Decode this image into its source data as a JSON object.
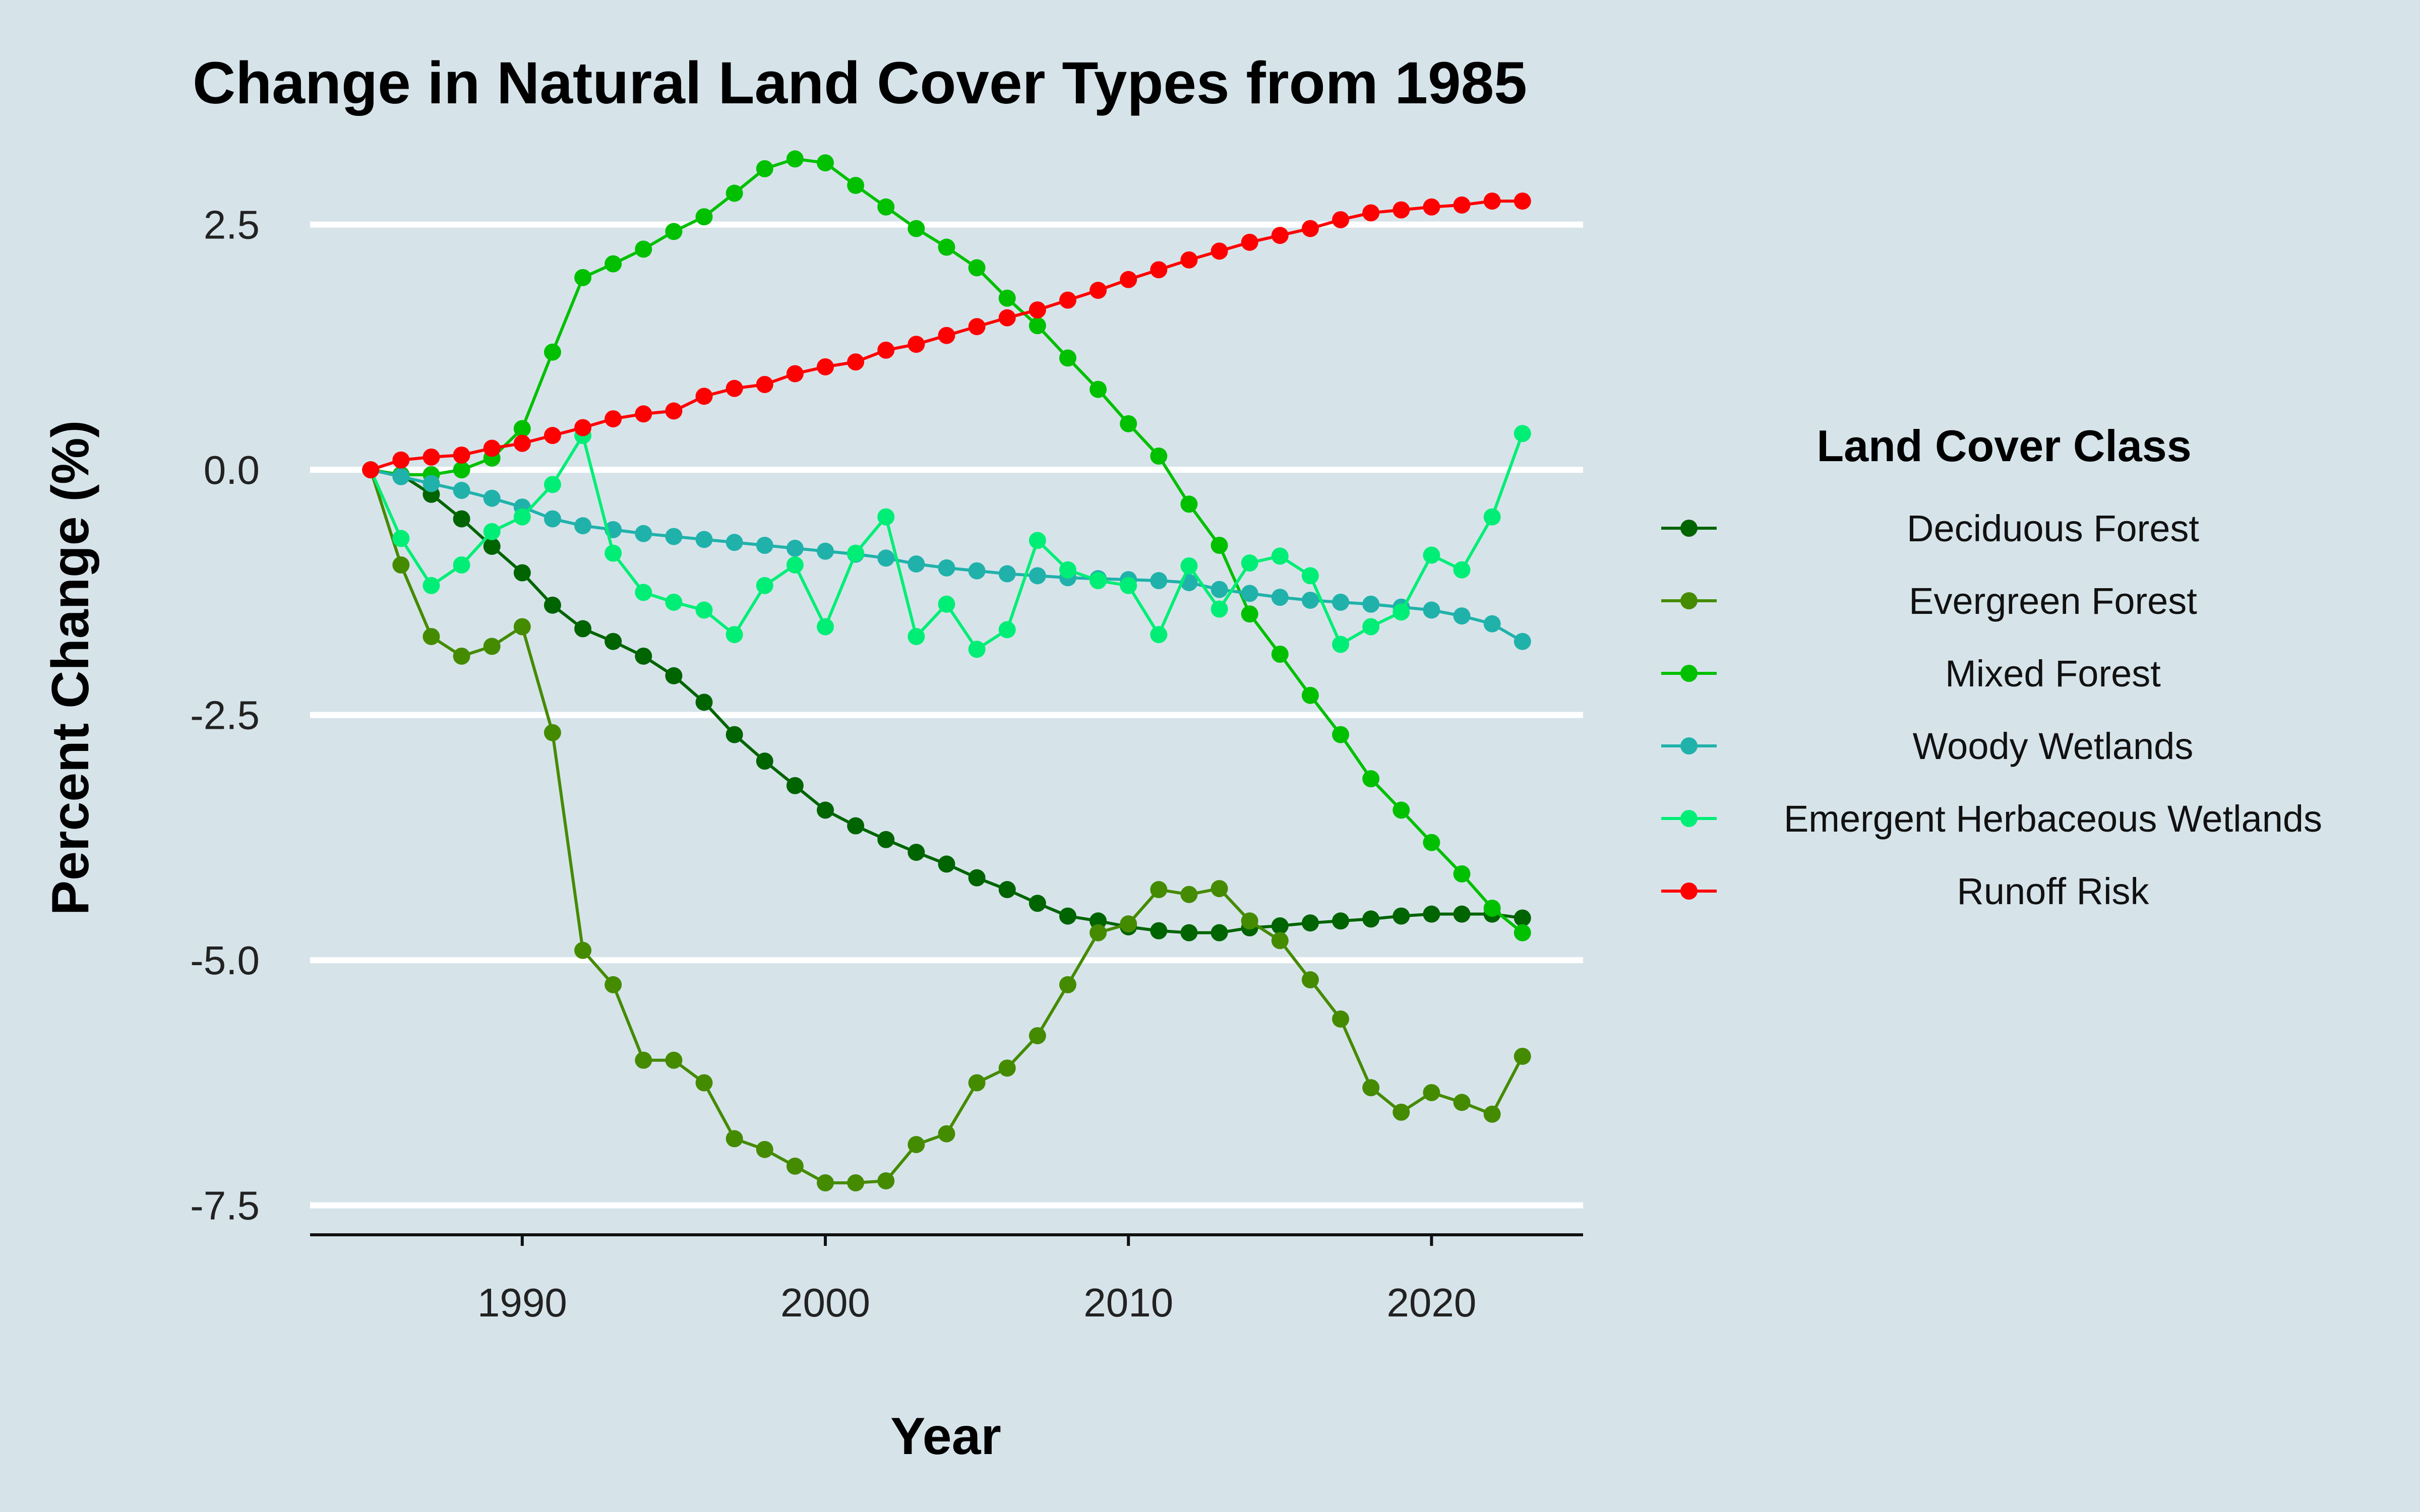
{
  "chart_data": {
    "type": "line",
    "title": "Change in Natural Land Cover Types from 1985",
    "xlabel": "Year",
    "ylabel": "Percent Change (%)",
    "xlim": [
      1983,
      2025
    ],
    "ylim": [
      -7.8,
      3.3
    ],
    "x_ticks": [
      1990,
      2000,
      2010,
      2020
    ],
    "x_tick_labels": [
      "1990",
      "2000",
      "2010",
      "2020"
    ],
    "y_ticks": [
      2.5,
      0.0,
      -2.5,
      -5.0,
      -7.5
    ],
    "y_tick_labels": [
      "2.5",
      "0.0",
      "-2.5",
      "-5.0",
      "-7.5"
    ],
    "grid": "horizontal",
    "legend_title": "Land Cover Class",
    "legend_position": "right",
    "x": [
      1985,
      1986,
      1987,
      1988,
      1989,
      1990,
      1991,
      1992,
      1993,
      1994,
      1995,
      1996,
      1997,
      1998,
      1999,
      2000,
      2001,
      2002,
      2003,
      2004,
      2005,
      2006,
      2007,
      2008,
      2009,
      2010,
      2011,
      2012,
      2013,
      2014,
      2015,
      2016,
      2017,
      2018,
      2019,
      2020,
      2021,
      2022,
      2023
    ],
    "series": [
      {
        "name": "Deciduous Forest",
        "color": "#006400",
        "values": [
          0,
          -0.05,
          -0.25,
          -0.5,
          -0.78,
          -1.05,
          -1.38,
          -1.62,
          -1.75,
          -1.9,
          -2.1,
          -2.37,
          -2.7,
          -2.97,
          -3.22,
          -3.47,
          -3.63,
          -3.77,
          -3.9,
          -4.02,
          -4.16,
          -4.28,
          -4.42,
          -4.55,
          -4.6,
          -4.66,
          -4.7,
          -4.72,
          -4.72,
          -4.67,
          -4.65,
          -4.62,
          -4.6,
          -4.58,
          -4.55,
          -4.53,
          -4.53,
          -4.53,
          -4.57
        ]
      },
      {
        "name": "Evergreen Forest",
        "color": "#458b00",
        "values": [
          0,
          -0.97,
          -1.7,
          -1.9,
          -1.8,
          -1.6,
          -2.68,
          -4.9,
          -5.25,
          -6.02,
          -6.02,
          -6.25,
          -6.82,
          -6.93,
          -7.1,
          -7.27,
          -7.27,
          -7.25,
          -6.88,
          -6.77,
          -6.25,
          -6.1,
          -5.77,
          -5.25,
          -4.72,
          -4.63,
          -4.28,
          -4.33,
          -4.27,
          -4.6,
          -4.8,
          -5.2,
          -5.6,
          -6.3,
          -6.55,
          -6.35,
          -6.45,
          -6.57,
          -5.98
        ]
      },
      {
        "name": "Mixed Forest",
        "color": "#00c000",
        "values": [
          0,
          -0.05,
          -0.05,
          0,
          0.12,
          0.42,
          1.2,
          1.96,
          2.1,
          2.25,
          2.43,
          2.58,
          2.82,
          3.07,
          3.17,
          3.13,
          2.9,
          2.68,
          2.46,
          2.27,
          2.06,
          1.75,
          1.47,
          1.14,
          0.82,
          0.47,
          0.14,
          -0.35,
          -0.77,
          -1.47,
          -1.88,
          -2.3,
          -2.7,
          -3.15,
          -3.47,
          -3.8,
          -4.12,
          -4.47,
          -4.72
        ]
      },
      {
        "name": "Woody Wetlands",
        "color": "#20b2aa",
        "values": [
          0,
          -0.07,
          -0.14,
          -0.21,
          -0.29,
          -0.38,
          -0.5,
          -0.57,
          -0.61,
          -0.65,
          -0.68,
          -0.71,
          -0.74,
          -0.77,
          -0.8,
          -0.83,
          -0.86,
          -0.9,
          -0.96,
          -1.0,
          -1.03,
          -1.06,
          -1.08,
          -1.1,
          -1.11,
          -1.12,
          -1.13,
          -1.15,
          -1.22,
          -1.26,
          -1.3,
          -1.33,
          -1.35,
          -1.37,
          -1.4,
          -1.43,
          -1.49,
          -1.57,
          -1.75
        ]
      },
      {
        "name": "Emergent Herbaceous Wetlands",
        "color": "#00ee76",
        "values": [
          0,
          -0.7,
          -1.18,
          -0.97,
          -0.63,
          -0.48,
          -0.15,
          0.35,
          -0.85,
          -1.25,
          -1.35,
          -1.43,
          -1.68,
          -1.18,
          -0.97,
          -1.6,
          -0.85,
          -0.48,
          -1.7,
          -1.37,
          -1.83,
          -1.63,
          -0.72,
          -1.02,
          -1.13,
          -1.18,
          -1.68,
          -0.98,
          -1.42,
          -0.95,
          -0.88,
          -1.08,
          -1.78,
          -1.6,
          -1.45,
          -0.87,
          -1.02,
          -0.48,
          0.37
        ]
      },
      {
        "name": "Runoff Risk",
        "color": "#ff0000",
        "values": [
          0,
          0.1,
          0.13,
          0.15,
          0.22,
          0.27,
          0.35,
          0.43,
          0.52,
          0.57,
          0.6,
          0.75,
          0.83,
          0.87,
          0.98,
          1.05,
          1.1,
          1.22,
          1.28,
          1.37,
          1.46,
          1.55,
          1.63,
          1.73,
          1.83,
          1.94,
          2.04,
          2.14,
          2.23,
          2.32,
          2.39,
          2.46,
          2.55,
          2.62,
          2.65,
          2.68,
          2.7,
          2.74,
          2.74
        ]
      }
    ]
  }
}
